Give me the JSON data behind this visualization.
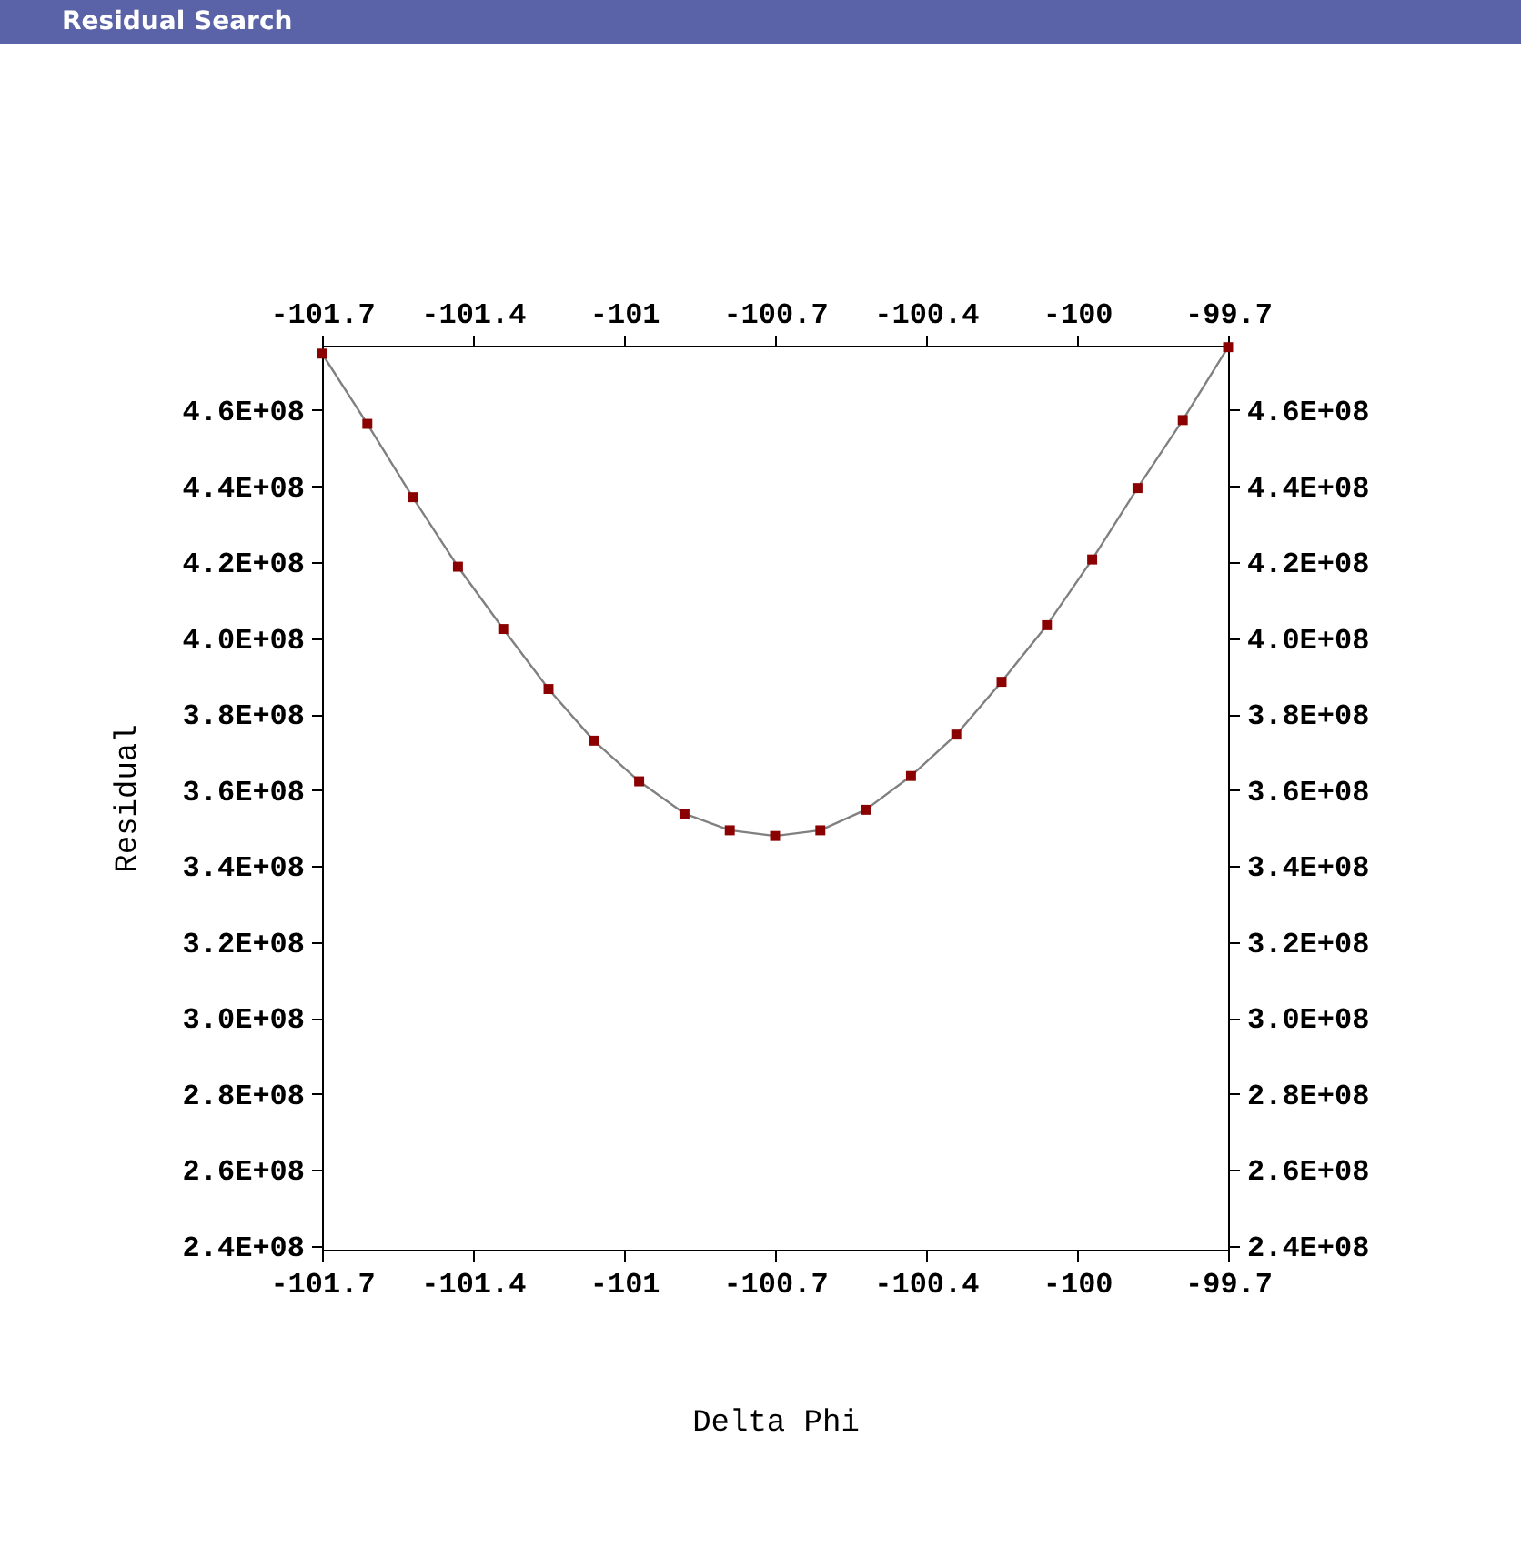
{
  "chart_data": {
    "type": "line",
    "title": "Residual Search",
    "xlabel": "Delta Phi",
    "ylabel": "Residual",
    "x": [
      -101.7,
      -101.6,
      -101.5,
      -101.4,
      -101.3,
      -101.2,
      -101.1,
      -101.0,
      -100.9,
      -100.8,
      -100.7,
      -100.6,
      -100.5,
      -100.4,
      -100.3,
      -100.2,
      -100.1,
      -100.0,
      -99.9,
      -99.8,
      -99.7
    ],
    "series": [
      {
        "color": "#808080",
        "marker": "none",
        "values": [
          474900000,
          456400000,
          437100000,
          418800000,
          402400000,
          386600000,
          373000000,
          362300000,
          353800000,
          349400000,
          347900000,
          349400000,
          354800000,
          363700000,
          374600000,
          388500000,
          403400000,
          420700000,
          439500000,
          457400000,
          476600000
        ]
      },
      {
        "type": "scatter",
        "color": "#8b0000",
        "marker": "square",
        "values": [
          474900000,
          456400000,
          437100000,
          418800000,
          402400000,
          386600000,
          373000000,
          362300000,
          353800000,
          349400000,
          347900000,
          349400000,
          354800000,
          363700000,
          374600000,
          388500000,
          403400000,
          420700000,
          439500000,
          457400000,
          476600000
        ]
      }
    ],
    "xlim": [
      -101.7,
      -99.7
    ],
    "x2lim": [
      -101.7,
      -99.7
    ],
    "xticks": [
      -101.7,
      {
        "value": -101.367,
        "label": "-101.4"
      },
      {
        "value": -101.033,
        "label": "-101"
      },
      -100.7,
      {
        "value": -100.367,
        "label": "-100.4"
      },
      {
        "value": -100.033,
        "label": "-100"
      },
      -99.7
    ],
    "x2ticks": [
      -101.7,
      {
        "value": -101.367,
        "label": "-101.4"
      },
      {
        "value": -101.033,
        "label": "-101"
      },
      -100.7,
      {
        "value": -100.367,
        "label": "-100.4"
      },
      {
        "value": -100.033,
        "label": "-100"
      },
      -99.7
    ],
    "ylim": [
      239000000,
      477000000
    ],
    "y2lim": [
      239000000,
      477000000
    ],
    "yticks": [
      {
        "value": 240000000,
        "label": "2.4E+08"
      },
      {
        "value": 260000000,
        "label": "2.6E+08"
      },
      {
        "value": 280000000,
        "label": "2.8E+08"
      },
      {
        "value": 300000000,
        "label": "3.0E+08"
      },
      {
        "value": 320000000,
        "label": "3.2E+08"
      },
      {
        "value": 340000000,
        "label": "3.4E+08"
      },
      {
        "value": 360000000,
        "label": "3.6E+08"
      },
      {
        "value": 380000000,
        "label": "3.8E+08"
      },
      {
        "value": 400000000,
        "label": "4.0E+08"
      },
      {
        "value": 420000000,
        "label": "4.2E+08"
      },
      {
        "value": 440000000,
        "label": "4.4E+08"
      },
      {
        "value": 460000000,
        "label": "4.6E+08"
      }
    ],
    "y2ticks": [
      {
        "value": 240000000,
        "label": "2.4E+08"
      },
      {
        "value": 260000000,
        "label": "2.6E+08"
      },
      {
        "value": 280000000,
        "label": "2.8E+08"
      },
      {
        "value": 300000000,
        "label": "3.0E+08"
      },
      {
        "value": 320000000,
        "label": "3.2E+08"
      },
      {
        "value": 340000000,
        "label": "3.4E+08"
      },
      {
        "value": 360000000,
        "label": "3.6E+08"
      },
      {
        "value": 380000000,
        "label": "3.8E+08"
      },
      {
        "value": 400000000,
        "label": "4.0E+08"
      },
      {
        "value": 420000000,
        "label": "4.2E+08"
      },
      {
        "value": 440000000,
        "label": "4.4E+08"
      },
      {
        "value": 460000000,
        "label": "4.6E+08"
      }
    ],
    "grid": false
  }
}
